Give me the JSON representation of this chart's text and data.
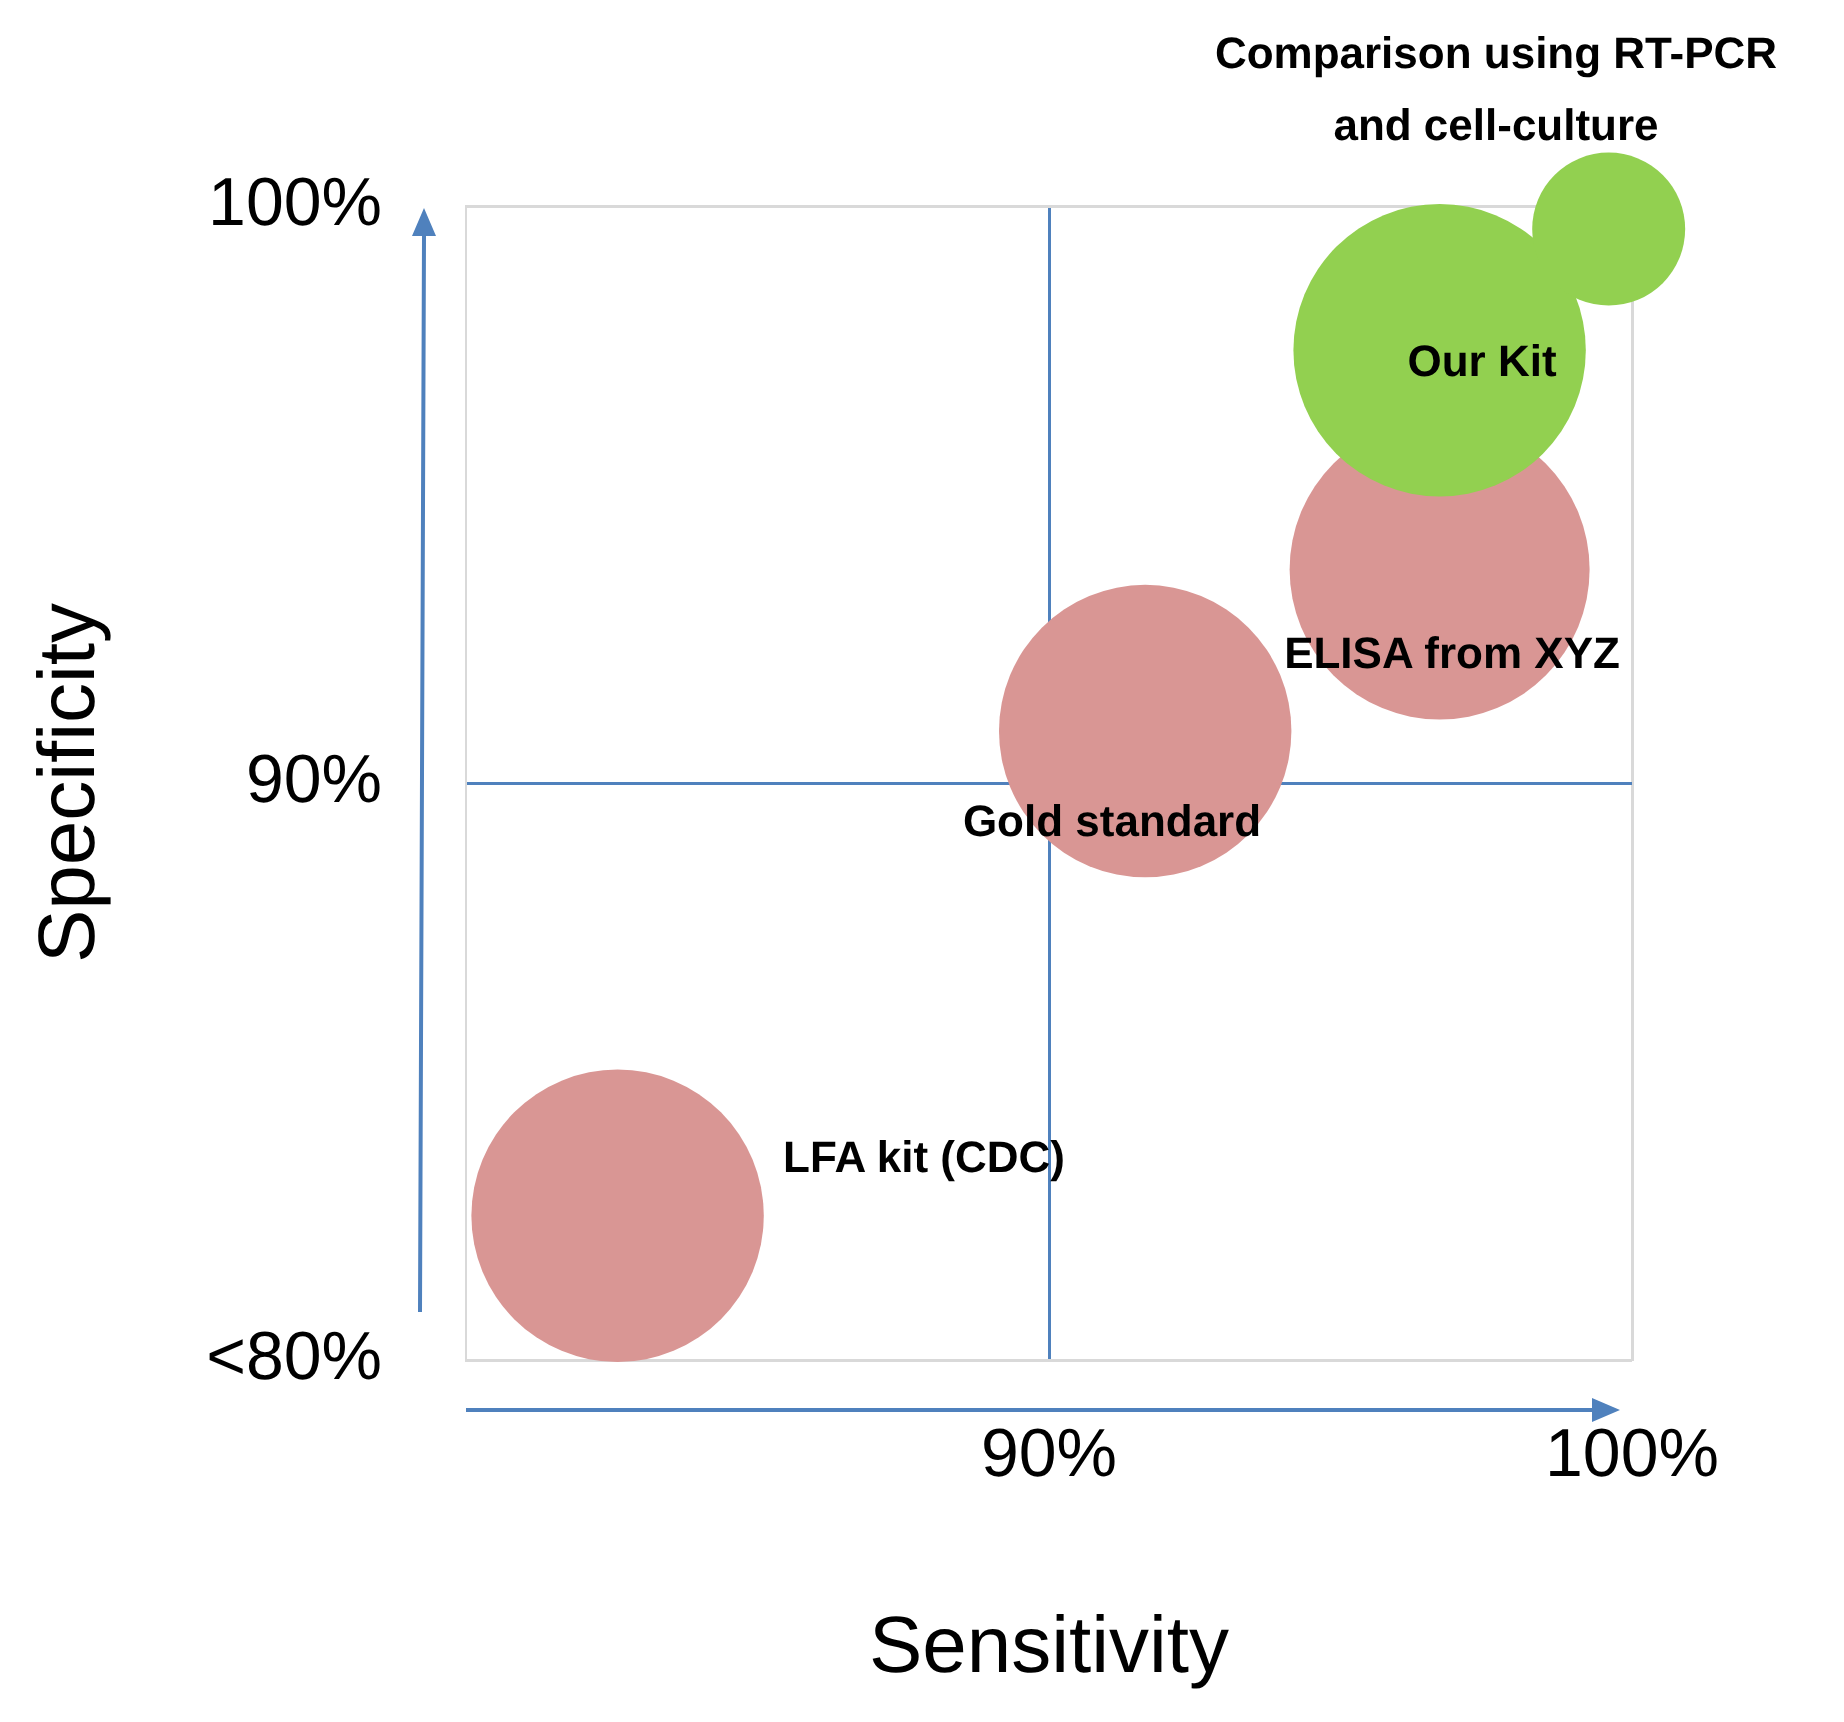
{
  "chart_data": {
    "type": "bubble",
    "xlabel": "Sensitivity",
    "ylabel": "Specificity",
    "x": [
      82.6,
      91.65,
      96.7,
      96.7,
      99.6
    ],
    "values": [
      82.5,
      90.9,
      93.7,
      97.5,
      99.6
    ],
    "sizes": [
      0.95,
      0.95,
      1,
      0.95,
      0.26
    ],
    "colors": [
      "#d99694",
      "#d99694",
      "#d99694",
      "#92d050",
      "#92d050"
    ],
    "xlim": [
      80,
      100
    ],
    "ylim": [
      80,
      100
    ],
    "xticks": [
      {
        "value": 90,
        "label": "90%"
      },
      {
        "value": 100,
        "label": "100%"
      }
    ],
    "yticks": [
      {
        "value": 80,
        "label": "<80%"
      },
      {
        "value": 90,
        "label": "90%"
      },
      {
        "value": 100,
        "label": "100%"
      }
    ],
    "grid": true,
    "annotations": [
      "LFA kit (CDC)",
      "Gold standard",
      "ELISA from XYZ",
      "Our Kit",
      "Comparison using RT-PCR and cell-culture"
    ]
  }
}
